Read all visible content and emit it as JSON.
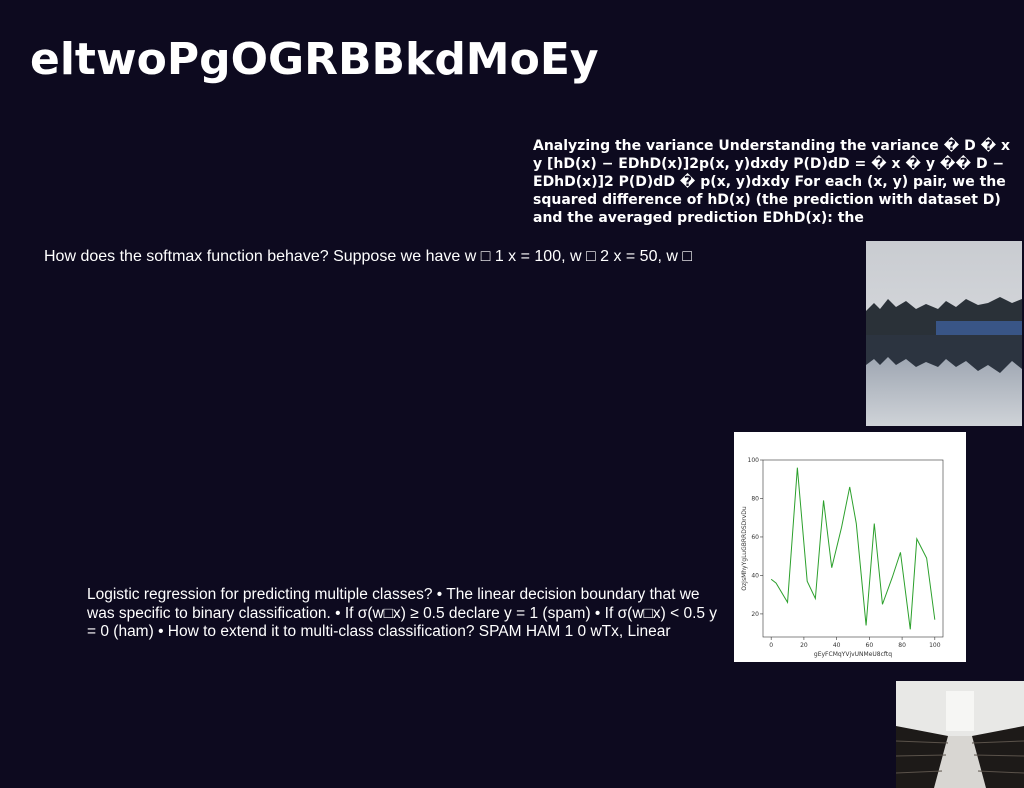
{
  "title": "eltwoPgOGRBBkdMoEy",
  "blocks": [
    "Analyzing the variance Understanding the variance � D � x y [hD(x) − EDhD(x)]2p(x, y)dxdy P(D)dD = � x � y �� D − EDhD(x)]2 P(D)dD � p(x, y)dxdy For each (x, y) pair, we the squared difference of hD(x) (the prediction with dataset D) and the averaged prediction EDhD(x): the",
    "How does the softmax function behave? Suppose we have w □ 1 x = 100, w □ 2 x = 50, w □",
    "Logistic regression for predicting multiple classes? • The linear decision boundary that we was specific to binary classification. • If σ(w□x) ≥ 0.5 declare y = 1 (spam) • If σ(w□x) < 0.5 y = 0 (ham) • How to extend it to multi-class classification? SPAM HAM 1 0 wTx, Linear"
  ],
  "chart_data": {
    "type": "line",
    "xlabel": "gEyFCMqYVjvUNMeU8cftq",
    "ylabel": "OzJsMhyYgLuGBRRDSDrvDu",
    "x": [
      0,
      3,
      10,
      16,
      22,
      27,
      32,
      37,
      43,
      48,
      52,
      58,
      63,
      68,
      74,
      79,
      85,
      89,
      95,
      100
    ],
    "series": [
      {
        "color": "#2ca02c",
        "values": [
          38,
          36,
          26,
          96,
          37,
          28,
          79,
          44,
          65,
          86,
          67,
          14,
          67,
          25,
          39,
          52,
          12,
          59,
          49,
          17
        ]
      }
    ],
    "xlim": [
      -5,
      105
    ],
    "ylim": [
      8,
      100
    ],
    "xticks": [
      0,
      20,
      40,
      60,
      80,
      100
    ],
    "yticks": [
      20,
      40,
      60,
      80,
      100
    ]
  }
}
